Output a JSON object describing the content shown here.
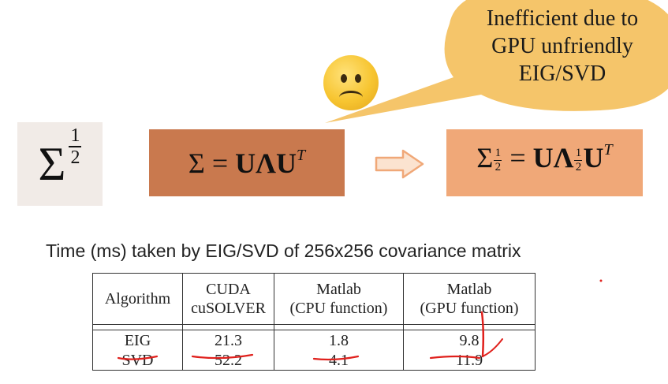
{
  "bubble": {
    "lines": [
      "Inefficient due to",
      "GPU unfriendly",
      "EIG/SVD"
    ],
    "color": "#f5c56a"
  },
  "face": {
    "icon": "sad-face-icon"
  },
  "formulas": {
    "left": {
      "symbol": "Σ",
      "num": "1",
      "den": "2"
    },
    "middle": {
      "lhs": "Σ",
      "eq": "=",
      "u": "U",
      "lambda": "Λ",
      "u2": "U",
      "sup": "T"
    },
    "right": {
      "lhs": "Σ",
      "num": "1",
      "den": "2",
      "eq": "=",
      "u": "U",
      "lambda": "Λ",
      "lnum": "1",
      "lden": "2",
      "u2": "U",
      "sup": "T"
    }
  },
  "table": {
    "caption": "Time (ms) taken by EIG/SVD of 256x256 covariance matrix",
    "headers": [
      [
        "Algorithm"
      ],
      [
        "CUDA",
        "cuSOLVER"
      ],
      [
        "Matlab",
        "(CPU function)"
      ],
      [
        "Matlab",
        "(GPU function)"
      ]
    ],
    "rows": [
      [
        "EIG",
        "21.3",
        "1.8",
        "9.8"
      ],
      [
        "SVD",
        "52.2",
        "4.1",
        "11.9"
      ]
    ]
  }
}
